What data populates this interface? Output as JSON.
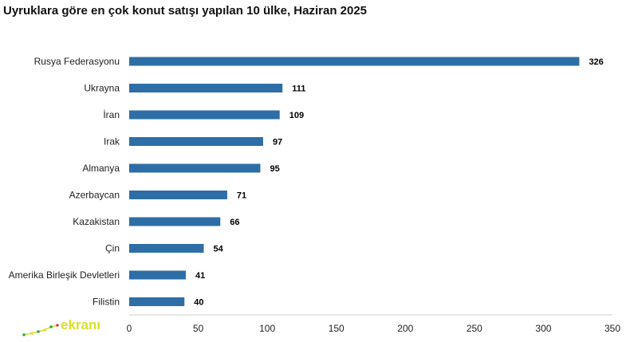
{
  "chart_data": {
    "type": "bar",
    "orientation": "horizontal",
    "title": "Uyruklara göre en çok konut satışı yapılan 10 ülke, Haziran 2025",
    "categories": [
      "Rusya Federasyonu",
      "Ukrayna",
      "İran",
      "Irak",
      "Almanya",
      "Azerbaycan",
      "Kazakistan",
      "Çin",
      "Amerika Birleşik Devletleri",
      "Filistin"
    ],
    "values": [
      326,
      111,
      109,
      97,
      95,
      71,
      66,
      54,
      41,
      40
    ],
    "xlim": [
      0,
      350
    ],
    "xticks": [
      "0",
      "50",
      "100",
      "150",
      "200",
      "250",
      "300",
      "350"
    ],
    "bar_color": "#2e6ea6",
    "grid": false,
    "legend": "none"
  },
  "logo": {
    "text": "ekranı"
  }
}
